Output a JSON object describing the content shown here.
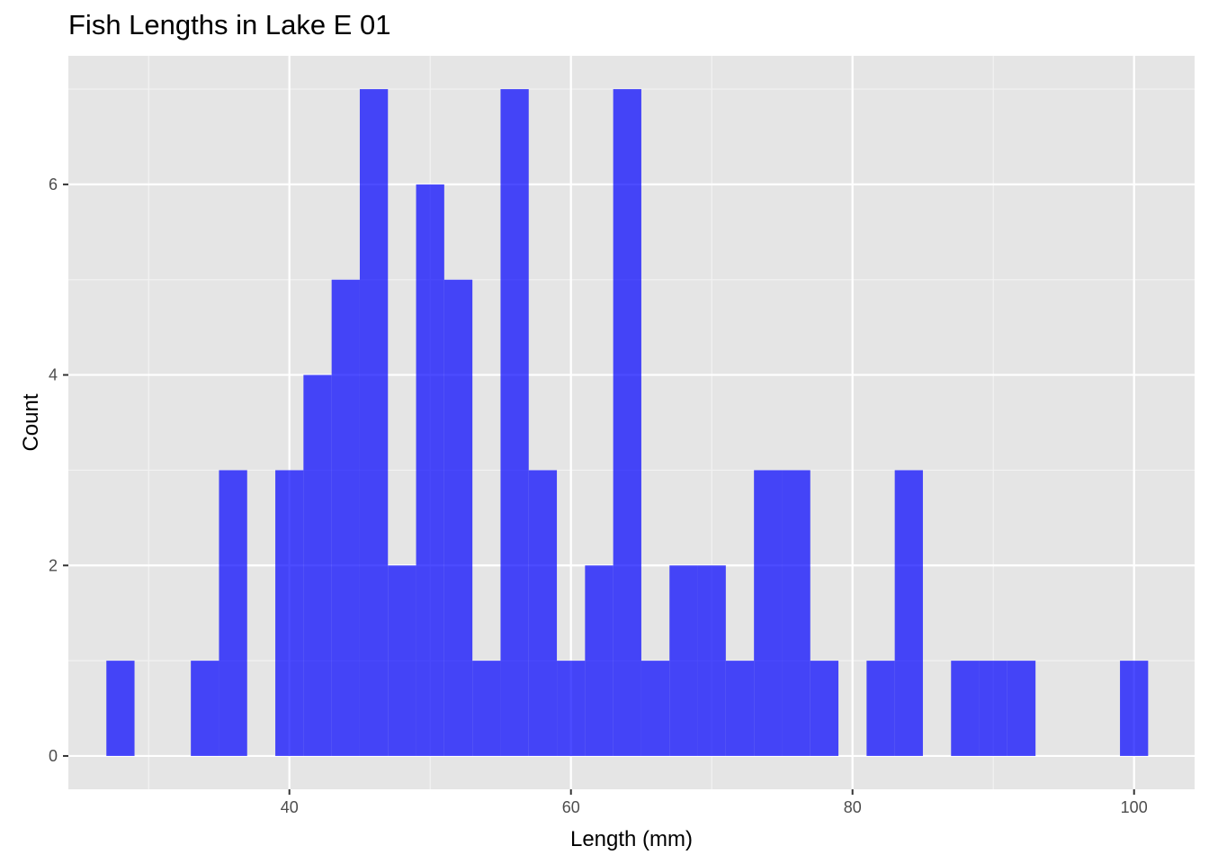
{
  "chart_data": {
    "type": "bar",
    "title": "Fish Lengths in Lake E 01",
    "xlabel": "Length (mm)",
    "ylabel": "Count",
    "xlim": [
      24.3,
      104.3
    ],
    "ylim": [
      -0.35,
      7.35
    ],
    "x_ticks": [
      40,
      60,
      80,
      100
    ],
    "y_ticks": [
      0,
      2,
      4,
      6
    ],
    "bin_width": 2,
    "bins": [
      {
        "start": 27,
        "end": 29,
        "count": 1
      },
      {
        "start": 29,
        "end": 31,
        "count": 0
      },
      {
        "start": 31,
        "end": 33,
        "count": 0
      },
      {
        "start": 33,
        "end": 35,
        "count": 1
      },
      {
        "start": 35,
        "end": 37,
        "count": 3
      },
      {
        "start": 37,
        "end": 39,
        "count": 0
      },
      {
        "start": 39,
        "end": 41,
        "count": 3
      },
      {
        "start": 41,
        "end": 43,
        "count": 4
      },
      {
        "start": 43,
        "end": 45,
        "count": 5
      },
      {
        "start": 45,
        "end": 47,
        "count": 7
      },
      {
        "start": 47,
        "end": 49,
        "count": 2
      },
      {
        "start": 49,
        "end": 51,
        "count": 6
      },
      {
        "start": 51,
        "end": 53,
        "count": 5
      },
      {
        "start": 53,
        "end": 55,
        "count": 1
      },
      {
        "start": 55,
        "end": 57,
        "count": 7
      },
      {
        "start": 57,
        "end": 59,
        "count": 3
      },
      {
        "start": 59,
        "end": 61,
        "count": 1
      },
      {
        "start": 61,
        "end": 63,
        "count": 2
      },
      {
        "start": 63,
        "end": 65,
        "count": 7
      },
      {
        "start": 65,
        "end": 67,
        "count": 1
      },
      {
        "start": 67,
        "end": 69,
        "count": 2
      },
      {
        "start": 69,
        "end": 71,
        "count": 2
      },
      {
        "start": 71,
        "end": 73,
        "count": 1
      },
      {
        "start": 73,
        "end": 75,
        "count": 3
      },
      {
        "start": 75,
        "end": 77,
        "count": 3
      },
      {
        "start": 77,
        "end": 79,
        "count": 1
      },
      {
        "start": 79,
        "end": 81,
        "count": 0
      },
      {
        "start": 81,
        "end": 83,
        "count": 1
      },
      {
        "start": 83,
        "end": 85,
        "count": 3
      },
      {
        "start": 85,
        "end": 87,
        "count": 0
      },
      {
        "start": 87,
        "end": 89,
        "count": 1
      },
      {
        "start": 89,
        "end": 91,
        "count": 1
      },
      {
        "start": 91,
        "end": 93,
        "count": 1
      },
      {
        "start": 93,
        "end": 95,
        "count": 0
      },
      {
        "start": 95,
        "end": 97,
        "count": 0
      },
      {
        "start": 97,
        "end": 99,
        "count": 0
      },
      {
        "start": 99,
        "end": 101,
        "count": 1
      }
    ],
    "grid": true,
    "colors": {
      "bar_fill": "#0000ff",
      "bar_opacity": 0.7,
      "panel_background": "#e5e5e5",
      "grid_major": "#ffffff",
      "grid_minor": "#f2f2f2",
      "tick_text": "#4d4d4d",
      "tick_mark": "#333333"
    }
  }
}
